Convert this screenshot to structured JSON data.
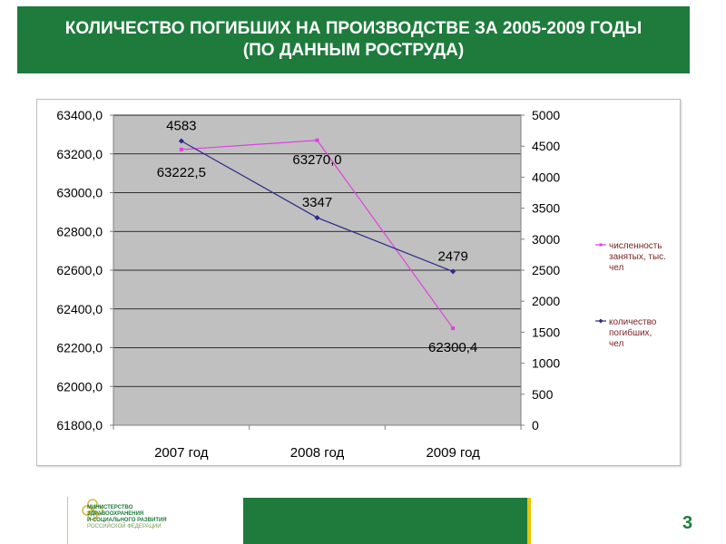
{
  "slide": {
    "title_line1": "КОЛИЧЕСТВО ПОГИБШИХ НА ПРОИЗВОДСТВЕ ЗА 2005-2009 ГОДЫ",
    "title_line2": "(ПО ДАННЫМ РОСТРУДА)",
    "page_number": "3",
    "logo_lines": [
      "МИНИСТЕРСТВО",
      "ЗДРАВООХРАНЕНИЯ",
      "И СОЦИАЛЬНОГО РАЗВИТИЯ",
      "РОССИЙСКОЙ ФЕДЕРАЦИИ"
    ],
    "colors": {
      "brand_green": "#1e7b3c",
      "accent_yellow": "#e8c400"
    }
  },
  "chart_data": {
    "type": "line",
    "categories": [
      "2007 год",
      "2008 год",
      "2009 год"
    ],
    "series": [
      {
        "name": "численность занятых, тыс. чел",
        "axis": "left",
        "values": [
          63222.5,
          63270.0,
          62300.4
        ],
        "labels": [
          "63222,5",
          "63270,0",
          "62300,4"
        ],
        "color": "#e040e0"
      },
      {
        "name": "количество погибших, чел",
        "axis": "right",
        "values": [
          4583,
          3347,
          2479
        ],
        "labels": [
          "4583",
          "3347",
          "2479"
        ],
        "color": "#2a2a8a"
      }
    ],
    "left_axis": {
      "ylim": [
        61800,
        63400
      ],
      "ticks": [
        61800,
        62000,
        62200,
        62400,
        62600,
        62800,
        63000,
        63200,
        63400
      ],
      "tick_labels": [
        "61800,0",
        "62000,0",
        "62200,0",
        "62400,0",
        "62600,0",
        "62800,0",
        "63000,0",
        "63200,0",
        "63400,0"
      ]
    },
    "right_axis": {
      "ylim": [
        0,
        5000
      ],
      "ticks": [
        0,
        500,
        1000,
        1500,
        2000,
        2500,
        3000,
        3500,
        4000,
        4500,
        5000
      ],
      "tick_labels": [
        "0",
        "500",
        "1000",
        "1500",
        "2000",
        "2500",
        "3000",
        "3500",
        "4000",
        "4500",
        "5000"
      ]
    },
    "plot_background": "#c0c0c0",
    "grid": true,
    "legend_position": "right"
  }
}
